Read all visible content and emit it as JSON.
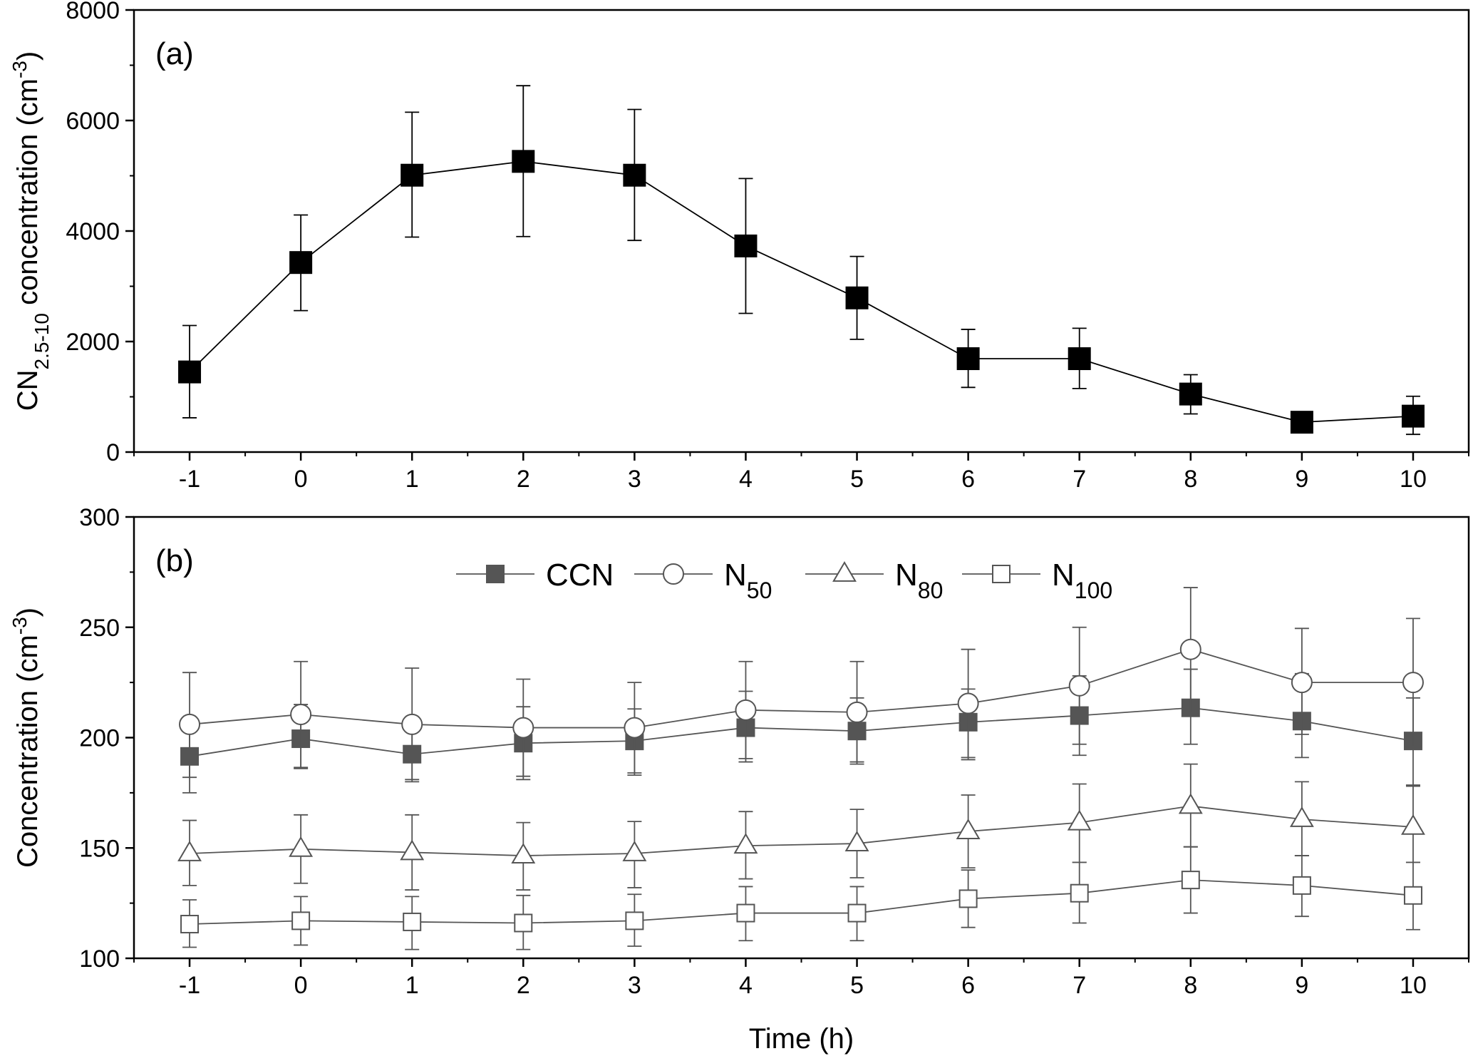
{
  "chart_data": [
    {
      "type": "line",
      "panel_label": "(a)",
      "ylabel": {
        "main": "CN",
        "sub": "2.5-10",
        "rest": " concentration (cm",
        "sup": "-3",
        "end": ")"
      },
      "xlabel": "",
      "x": [
        -1,
        0,
        1,
        2,
        3,
        4,
        5,
        6,
        7,
        8,
        9,
        10
      ],
      "x_ticks": [
        "-1",
        "0",
        "1",
        "2",
        "3",
        "4",
        "5",
        "6",
        "7",
        "8",
        "9",
        "10"
      ],
      "xlim": [
        -1.5,
        10.5
      ],
      "ylim": [
        0,
        8000
      ],
      "y_ticks": [
        "0",
        "2000",
        "4000",
        "6000",
        "8000"
      ],
      "grid": false,
      "series": [
        {
          "marker": "filled-square",
          "color": "#000000",
          "values": [
            1450,
            3430,
            5010,
            5260,
            5010,
            3730,
            2790,
            1690,
            1690,
            1050,
            540,
            650
          ],
          "err_high": [
            2290,
            4290,
            6150,
            6630,
            6200,
            4950,
            3540,
            2220,
            2240,
            1400,
            540,
            1010
          ],
          "err_low": [
            620,
            2560,
            3890,
            3900,
            3830,
            2510,
            2040,
            1170,
            1150,
            690,
            540,
            320
          ]
        }
      ]
    },
    {
      "type": "line",
      "panel_label": "(b)",
      "ylabel": {
        "main": "Concentration (cm",
        "sup": "-3",
        "end": ")"
      },
      "xlabel": "Time (h)",
      "x": [
        -1,
        0,
        1,
        2,
        3,
        4,
        5,
        6,
        7,
        8,
        9,
        10
      ],
      "x_ticks": [
        "-1",
        "0",
        "1",
        "2",
        "3",
        "4",
        "5",
        "6",
        "7",
        "8",
        "9",
        "10"
      ],
      "xlim": [
        -1.5,
        10.5
      ],
      "ylim": [
        100,
        300
      ],
      "y_ticks": [
        "100",
        "150",
        "200",
        "250",
        "300"
      ],
      "grid": false,
      "legend": "top-center",
      "series": [
        {
          "name": "CCN",
          "label_main": "CCN",
          "label_sub": "",
          "marker": "filled-square",
          "color": "#555555",
          "values": [
            191.5,
            199.5,
            192.5,
            197.5,
            198.5,
            204.5,
            203,
            207,
            210,
            213.5,
            207.5,
            198.5
          ],
          "err_high": [
            208,
            215,
            207,
            214,
            213,
            221,
            218,
            222,
            228,
            231,
            229,
            218
          ],
          "err_low": [
            175,
            186,
            180,
            181,
            183,
            189,
            188,
            191,
            192,
            197,
            191,
            178
          ]
        },
        {
          "name": "N50",
          "label_main": "N",
          "label_sub": "50",
          "marker": "open-circle",
          "color": "#555555",
          "values": [
            206,
            210.5,
            206,
            204.5,
            204.5,
            212.5,
            211.5,
            215.5,
            223.5,
            240,
            225,
            225
          ],
          "err_high": [
            229.5,
            234.5,
            231.5,
            226.5,
            225,
            234.5,
            234.5,
            240,
            250,
            268,
            249.5,
            254
          ],
          "err_low": [
            182,
            186.5,
            181,
            182.5,
            184,
            190.5,
            189,
            190,
            197,
            211,
            201.5,
            196
          ]
        },
        {
          "name": "N80",
          "label_main": "N",
          "label_sub": "80",
          "marker": "open-triangle",
          "color": "#555555",
          "values": [
            147.5,
            149.5,
            148,
            146.5,
            147.5,
            151,
            152,
            157.5,
            161.5,
            169,
            163,
            159.5
          ],
          "err_high": [
            162.5,
            165,
            165,
            161.5,
            162,
            166.5,
            167.5,
            174,
            179,
            188,
            180,
            178.5
          ],
          "err_low": [
            133,
            134,
            131,
            131,
            132,
            136,
            136.5,
            141,
            143.5,
            150.5,
            146.5,
            143.5
          ]
        },
        {
          "name": "N100",
          "label_main": "N",
          "label_sub": "100",
          "marker": "open-square",
          "color": "#555555",
          "values": [
            115.5,
            117,
            116.5,
            116,
            117,
            120.5,
            120.5,
            127,
            129.5,
            135.5,
            133,
            128.5
          ],
          "err_high": [
            126.5,
            128,
            128,
            128.5,
            129,
            132.5,
            132.5,
            140,
            143.5,
            150.5,
            146.5,
            143.5
          ],
          "err_low": [
            105,
            106,
            104,
            104,
            105.5,
            108,
            108,
            114,
            116,
            120.5,
            119,
            113
          ]
        }
      ]
    }
  ]
}
